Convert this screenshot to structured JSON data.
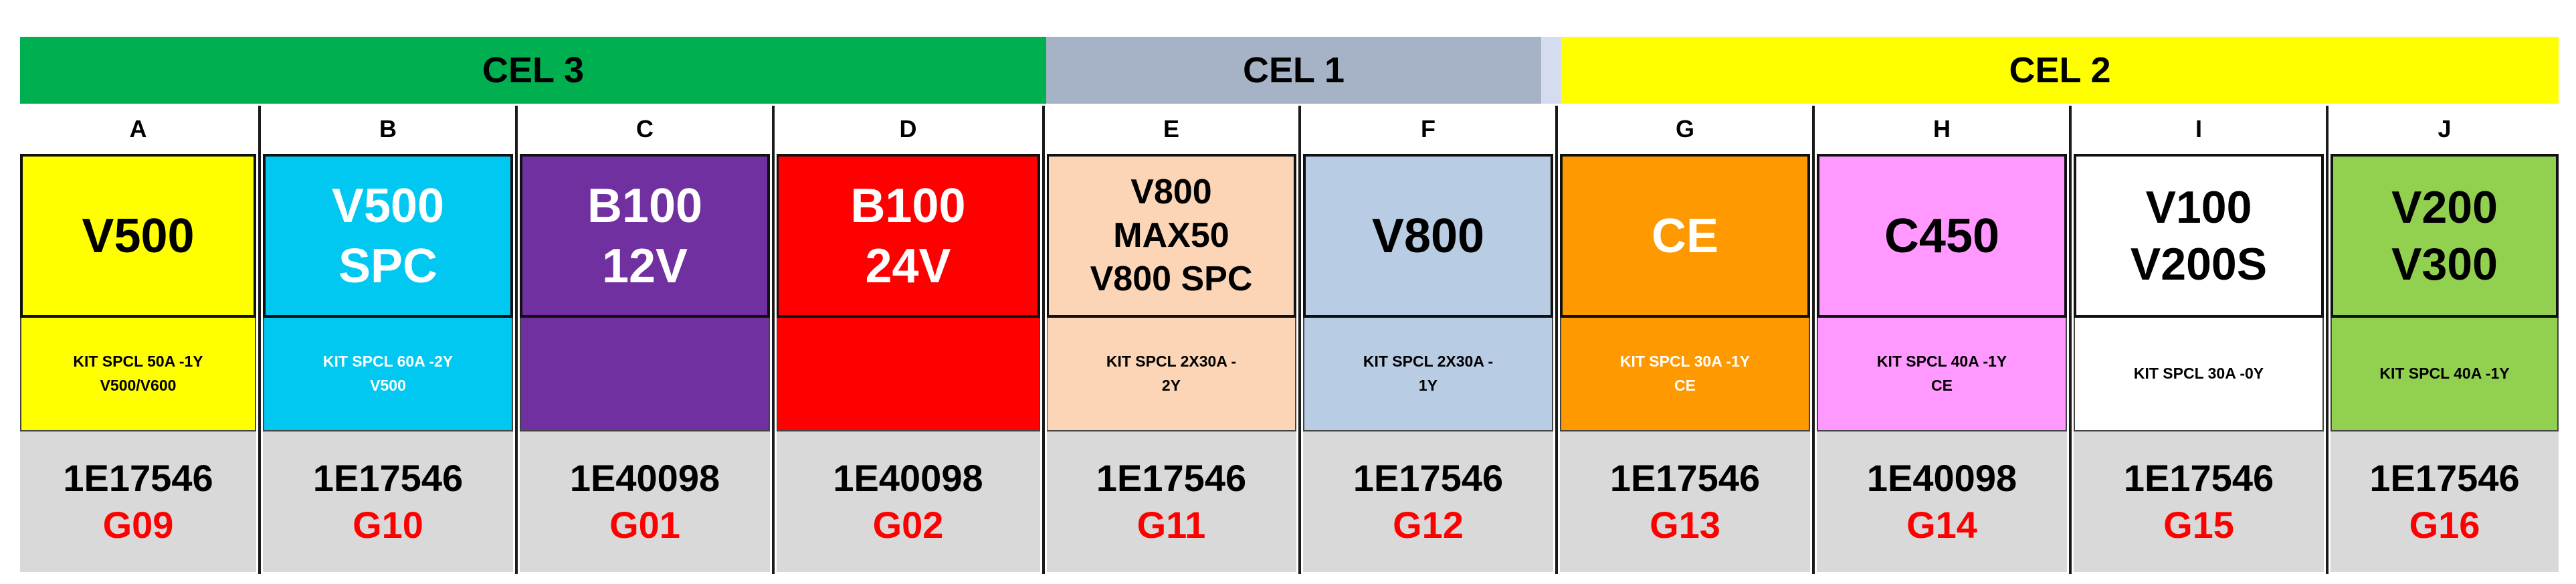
{
  "groups": [
    {
      "label": "CEL 3",
      "color": "#00b050"
    },
    {
      "label": "CEL 1",
      "color": "#a6b3c7"
    },
    {
      "label": "CEL 2",
      "color": "#ffff00"
    }
  ],
  "columns": [
    {
      "letter": "A",
      "product_lines": [
        "V500"
      ],
      "product_color": "#ffff00",
      "product_text_color": "#000000",
      "kit": "KIT SPCL 50A -1Y\nV500/V600",
      "kit_color": "#ffff00",
      "kit_text_color": "#000000",
      "code": "1E17546",
      "location": "G09"
    },
    {
      "letter": "B",
      "product_lines": [
        "V500",
        "SPC"
      ],
      "product_color": "#00c8f0",
      "product_text_color": "#ffffff",
      "kit": "KIT SPCL 60A -2Y\nV500",
      "kit_color": "#00c8f0",
      "kit_text_color": "#ffffff",
      "code": "1E17546",
      "location": "G10"
    },
    {
      "letter": "C",
      "product_lines": [
        "B100",
        "12V"
      ],
      "product_color": "#7030a0",
      "product_text_color": "#ffffff",
      "kit": "",
      "kit_color": "#7030a0",
      "kit_text_color": "#ffffff",
      "code": "1E40098",
      "location": "G01"
    },
    {
      "letter": "D",
      "product_lines": [
        "B100",
        "24V"
      ],
      "product_color": "#ff0000",
      "product_text_color": "#ffffff",
      "kit": "",
      "kit_color": "#ff0000",
      "kit_text_color": "#ffffff",
      "code": "1E40098",
      "location": "G02"
    },
    {
      "letter": "E",
      "product_lines": [
        "V800",
        "MAX50",
        "V800 SPC"
      ],
      "product_color": "#fbd5b5",
      "product_text_color": "#000000",
      "kit": "KIT SPCL 2X30A -\n2Y",
      "kit_color": "#fbd5b5",
      "kit_text_color": "#000000",
      "code": "1E17546",
      "location": "G11"
    },
    {
      "letter": "F",
      "product_lines": [
        "V800"
      ],
      "product_color": "#b8cce4",
      "product_text_color": "#000000",
      "kit": "KIT SPCL 2X30A -\n1Y",
      "kit_color": "#b8cce4",
      "kit_text_color": "#000000",
      "code": "1E17546",
      "location": "G12"
    },
    {
      "letter": "G",
      "product_lines": [
        "CE"
      ],
      "product_color": "#ff9900",
      "product_text_color": "#ffffff",
      "kit": "KIT SPCL 30A -1Y\nCE",
      "kit_color": "#ff9900",
      "kit_text_color": "#ffffff",
      "code": "1E17546",
      "location": "G13"
    },
    {
      "letter": "H",
      "product_lines": [
        "C450"
      ],
      "product_color": "#ff99ff",
      "product_text_color": "#000000",
      "kit": "KIT SPCL 40A -1Y\nCE",
      "kit_color": "#ff99ff",
      "kit_text_color": "#000000",
      "code": "1E40098",
      "location": "G14"
    },
    {
      "letter": "I",
      "product_lines": [
        "V100",
        "V200S"
      ],
      "product_color": "#ffffff",
      "product_text_color": "#000000",
      "kit": "KIT SPCL 30A -0Y",
      "kit_color": "#ffffff",
      "kit_text_color": "#000000",
      "code": "1E17546",
      "location": "G15"
    },
    {
      "letter": "J",
      "product_lines": [
        "V200",
        "V300"
      ],
      "product_color": "#92d050",
      "product_text_color": "#000000",
      "kit": "KIT SPCL 40A -1Y",
      "kit_color": "#92d050",
      "kit_text_color": "#000000",
      "code": "1E17546",
      "location": "G16"
    }
  ]
}
